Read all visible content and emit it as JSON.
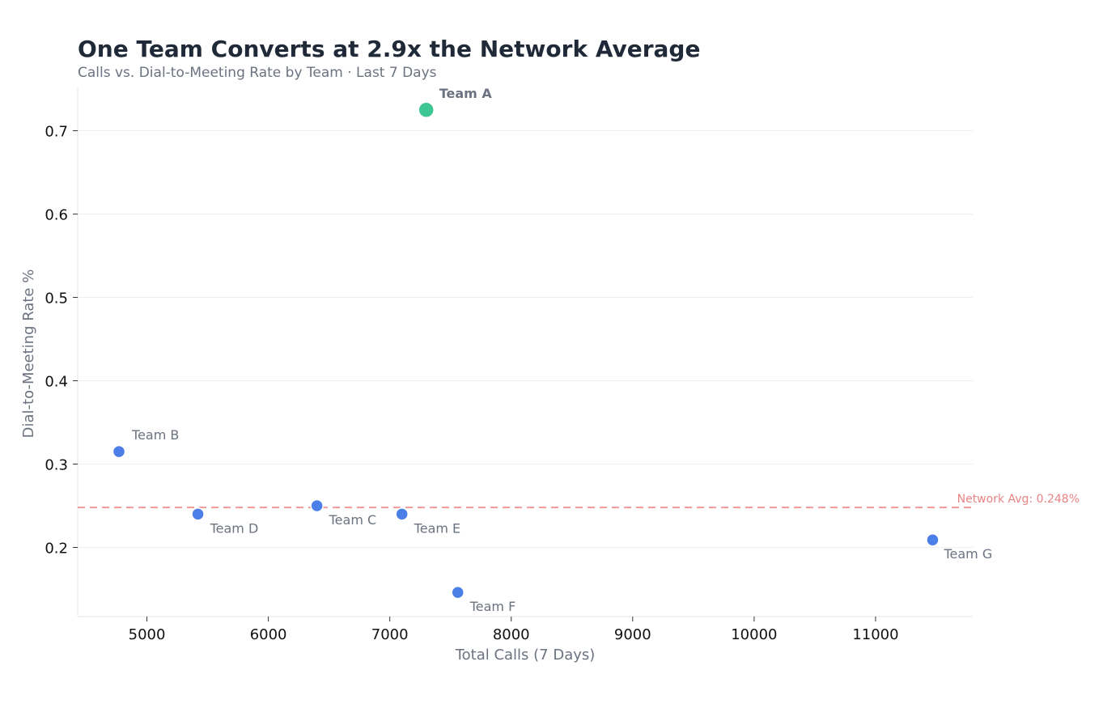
{
  "chart_data": {
    "type": "scatter",
    "title": "One Team Converts at 2.9x the Network Average",
    "subtitle": "Calls vs. Dial-to-Meeting Rate by Team · Last 7 Days",
    "xlabel": "Total Calls (7 Days)",
    "ylabel": "Dial-to-Meeting Rate %",
    "xlim": [
      4430,
      11800
    ],
    "ylim": [
      0.117,
      0.752
    ],
    "xticks": [
      5000,
      6000,
      7000,
      8000,
      9000,
      10000,
      11000
    ],
    "yticks": [
      0.2,
      0.3,
      0.4,
      0.5,
      0.6,
      0.7
    ],
    "grid": "horizontal",
    "points": [
      {
        "name": "Team A",
        "x": 7300,
        "y": 0.725,
        "highlight": true
      },
      {
        "name": "Team B",
        "x": 4770,
        "y": 0.315,
        "highlight": false
      },
      {
        "name": "Team C",
        "x": 6400,
        "y": 0.25,
        "highlight": false
      },
      {
        "name": "Team D",
        "x": 5420,
        "y": 0.24,
        "highlight": false
      },
      {
        "name": "Team E",
        "x": 7100,
        "y": 0.24,
        "highlight": false
      },
      {
        "name": "Team F",
        "x": 7560,
        "y": 0.146,
        "highlight": false
      },
      {
        "name": "Team G",
        "x": 11470,
        "y": 0.209,
        "highlight": false
      }
    ],
    "reference_line": {
      "value": 0.248,
      "label": "Network Avg: 0.248%"
    },
    "colors": {
      "highlight": "#3dc593",
      "default": "#4c7ee8",
      "reference": "#ef9a9a",
      "reference_text": "#e98484",
      "grid": "#eeeeee"
    }
  }
}
